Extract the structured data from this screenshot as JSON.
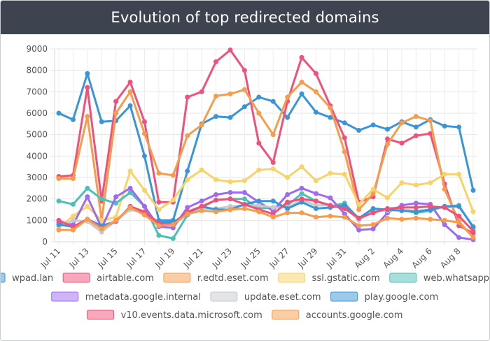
{
  "window": {
    "title": "Evolution of top redirected domains"
  },
  "chart_data": {
    "type": "line",
    "title": "Evolution of top redirected domains",
    "ylim": [
      0,
      9000
    ],
    "y_ticks": [
      0,
      1000,
      2000,
      3000,
      4000,
      5000,
      6000,
      7000,
      8000,
      9000
    ],
    "grid": true,
    "legend_position": "bottom",
    "x": [
      "Jul 11",
      "Jul 12",
      "Jul 13",
      "Jul 14",
      "Jul 15",
      "Jul 16",
      "Jul 17",
      "Jul 18",
      "Jul 19",
      "Jul 20",
      "Jul 21",
      "Jul 22",
      "Jul 23",
      "Jul 24",
      "Jul 25",
      "Jul 26",
      "Jul 27",
      "Jul 28",
      "Jul 29",
      "Jul 30",
      "Jul 31",
      "Aug 1",
      "Aug 2",
      "Aug 3",
      "Aug 4",
      "Aug 5",
      "Aug 6",
      "Aug 7",
      "Aug 8",
      "Aug 9"
    ],
    "x_tick_labels": [
      "Jul 11",
      "Jul 13",
      "Jul 15",
      "Jul 17",
      "Jul 19",
      "Jul 21",
      "Jul 23",
      "Jul 25",
      "Jul 27",
      "Jul 29",
      "Jul 31",
      "Aug 2",
      "Aug 4",
      "Aug 6",
      "Aug 8"
    ],
    "series": [
      {
        "name": "wpad.lan",
        "color": "#3a95d8",
        "values": [
          6000,
          5700,
          7850,
          5600,
          5650,
          6350,
          4000,
          1000,
          1000,
          3300,
          5500,
          5850,
          5800,
          6300,
          6750,
          6550,
          5800,
          6900,
          6050,
          5800,
          5550,
          5200,
          5450,
          5250,
          5600,
          5350,
          5700,
          5400,
          5350,
          2400
        ]
      },
      {
        "name": "airtable.com",
        "color": "#f0517a",
        "values": [
          3050,
          3100,
          7200,
          1900,
          6550,
          7450,
          5600,
          1850,
          1850,
          6750,
          7000,
          8400,
          8950,
          8000,
          4600,
          3700,
          6550,
          8600,
          7850,
          6350,
          4850,
          1850,
          2100,
          4800,
          4600,
          4950,
          5050,
          2700,
          750,
          400
        ]
      },
      {
        "name": "r.edtd.eset.com",
        "color": "#f59d4c",
        "values": [
          2950,
          2950,
          5850,
          1000,
          6000,
          7000,
          5050,
          3200,
          3100,
          4950,
          5450,
          6800,
          6900,
          7100,
          6000,
          5000,
          6750,
          7450,
          7000,
          6250,
          4200,
          1500,
          2250,
          4550,
          5550,
          5850,
          5650,
          2450,
          950,
          200
        ]
      },
      {
        "name": "ssl.gstatic.com",
        "color": "#f8d36a",
        "values": [
          650,
          1200,
          1650,
          1000,
          1150,
          3300,
          2400,
          1500,
          1950,
          2900,
          3350,
          2900,
          2800,
          2850,
          3350,
          3400,
          3000,
          3500,
          2850,
          3200,
          3150,
          1750,
          2450,
          2050,
          2750,
          2650,
          2750,
          3150,
          3150,
          1400
        ]
      },
      {
        "name": "web.whatsapp.com",
        "color": "#4dbfb8",
        "values": [
          1900,
          1750,
          2500,
          2000,
          1800,
          2300,
          1650,
          300,
          150,
          1250,
          1600,
          1950,
          2000,
          2000,
          1550,
          1600,
          1700,
          2250,
          1900,
          1650,
          1800,
          1050,
          1500,
          1500,
          1500,
          1350,
          1450,
          1650,
          1700,
          650
        ]
      },
      {
        "name": "metadata.google.internal",
        "color": "#9d6bf0",
        "values": [
          900,
          800,
          2100,
          650,
          2100,
          2500,
          1650,
          700,
          650,
          1600,
          1900,
          2200,
          2300,
          2300,
          1850,
          1450,
          2200,
          2500,
          2250,
          2050,
          1300,
          550,
          600,
          1350,
          1700,
          1800,
          1750,
          800,
          200,
          100
        ]
      },
      {
        "name": "update.eset.com",
        "color": "#c8cace",
        "values": [
          700,
          1000,
          950,
          450,
          1000,
          1500,
          1350,
          900,
          850,
          1350,
          1550,
          1550,
          1650,
          1700,
          1700,
          1600,
          1600,
          1950,
          1700,
          1700,
          1600,
          1000,
          1450,
          1450,
          1500,
          1450,
          1500,
          1600,
          1650,
          700
        ]
      },
      {
        "name": "play.google.com",
        "color": "#3a95d8",
        "values": [
          800,
          700,
          1050,
          750,
          950,
          1650,
          1350,
          900,
          900,
          1350,
          1650,
          1500,
          1500,
          1750,
          1900,
          1900,
          1550,
          1850,
          1550,
          1600,
          1700,
          1100,
          1550,
          1500,
          1450,
          1400,
          1500,
          1650,
          1650,
          700
        ]
      },
      {
        "name": "v10.events.data.microsoft.com",
        "color": "#f0517a",
        "values": [
          1000,
          700,
          1050,
          650,
          950,
          1650,
          1400,
          850,
          800,
          1400,
          1650,
          1950,
          2000,
          1750,
          1500,
          1300,
          1850,
          2000,
          1900,
          1700,
          1550,
          1100,
          1350,
          1550,
          1600,
          1600,
          1650,
          1600,
          1200,
          500
        ]
      },
      {
        "name": "accounts.google.com",
        "color": "#f59d4c",
        "values": [
          550,
          550,
          1050,
          600,
          1000,
          1600,
          1250,
          750,
          800,
          1300,
          1450,
          1400,
          1500,
          1550,
          1400,
          1150,
          1350,
          1350,
          1150,
          1200,
          1150,
          750,
          800,
          1100,
          1050,
          1100,
          1050,
          1000,
          900,
          200
        ]
      }
    ]
  }
}
